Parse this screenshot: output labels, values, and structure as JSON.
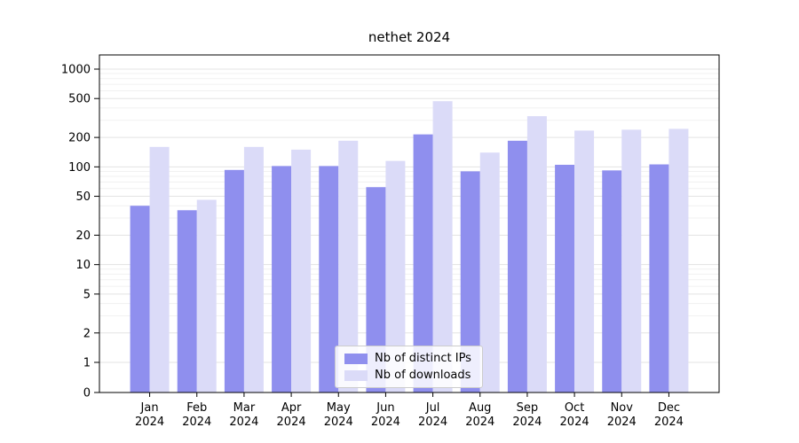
{
  "chart_data": {
    "type": "bar",
    "title": "nethet 2024",
    "scale": "symlog",
    "grid": true,
    "legend_position": "lower center",
    "categories": [
      "Jan",
      "Feb",
      "Mar",
      "Apr",
      "May",
      "Jun",
      "Jul",
      "Aug",
      "Sep",
      "Oct",
      "Nov",
      "Dec"
    ],
    "year": "2024",
    "series": [
      {
        "name": "Nb of distinct IPs",
        "color": "#8f8fee",
        "values": [
          40,
          36,
          93,
          102,
          102,
          62,
          215,
          90,
          185,
          105,
          92,
          106
        ]
      },
      {
        "name": "Nb of downloads",
        "color": "#dbdbf8",
        "values": [
          160,
          46,
          160,
          150,
          185,
          115,
          470,
          140,
          330,
          235,
          240,
          245
        ]
      }
    ],
    "yticks": [
      0,
      1,
      2,
      5,
      10,
      20,
      50,
      100,
      200,
      500,
      1000
    ],
    "ylim": [
      0,
      1000
    ],
    "colors": {
      "grid": "#e3e3e3",
      "grid_minor": "#f1f1f1",
      "axis": "#000000",
      "background": "#ffffff"
    }
  }
}
